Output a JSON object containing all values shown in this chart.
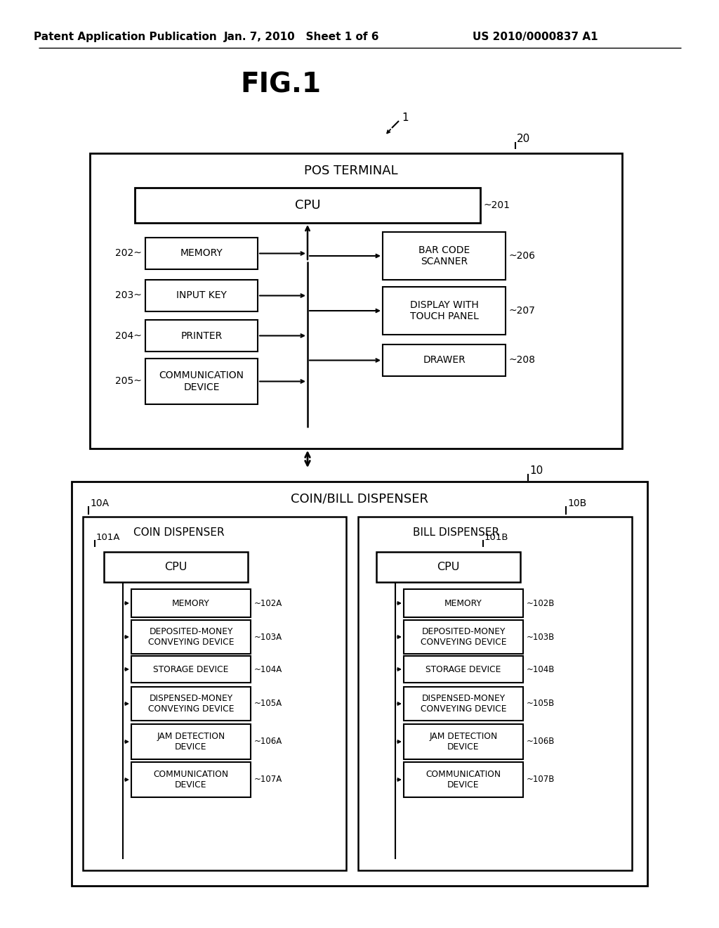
{
  "bg_color": "#ffffff",
  "title": "FIG.1",
  "header_left": "Patent Application Publication",
  "header_mid": "Jan. 7, 2010   Sheet 1 of 6",
  "header_right": "US 2010/0000837 A1",
  "pos_terminal_label": "POS TERMINAL",
  "coin_bill_label": "COIN/BILL DISPENSER",
  "coin_disp_label": "COIN DISPENSER",
  "bill_disp_label": "BILL DISPENSER",
  "cpu_label": "CPU",
  "ref1": "1",
  "ref10": "10",
  "ref10A": "10A",
  "ref10B": "10B",
  "ref20": "20",
  "ref201": "201",
  "ref202": "202",
  "ref203": "203",
  "ref204": "204",
  "ref205": "205",
  "ref206": "206",
  "ref207": "207",
  "ref208": "208",
  "ref101A": "101A",
  "ref101B": "101B",
  "ref102A": "102A",
  "ref102B": "102B",
  "ref103A": "103A",
  "ref103B": "103B",
  "ref104A": "104A",
  "ref104B": "104B",
  "ref105A": "105A",
  "ref105B": "105B",
  "ref106A": "106A",
  "ref106B": "106B",
  "ref107A": "107A",
  "ref107B": "107B",
  "left_boxes": [
    "MEMORY",
    "INPUT KEY",
    "PRINTER",
    "COMMUNICATION\nDEVICE"
  ],
  "right_boxes": [
    "BAR CODE\nSCANNER",
    "DISPLAY WITH\nTOUCH PANEL",
    "DRAWER"
  ],
  "coin_boxes": [
    "MEMORY",
    "DEPOSITED-MONEY\nCONVEYING DEVICE",
    "STORAGE DEVICE",
    "DISPENSED-MONEY\nCONVEYING DEVICE",
    "JAM DETECTION\nDEVICE",
    "COMMUNICATION\nDEVICE"
  ],
  "bill_boxes": [
    "MEMORY",
    "DEPOSITED-MONEY\nCONVEYING DEVICE",
    "STORAGE DEVICE",
    "DISPENSED-MONEY\nCONVEYING DEVICE",
    "JAM DETECTION\nDEVICE",
    "COMMUNICATION\nDEVICE"
  ]
}
